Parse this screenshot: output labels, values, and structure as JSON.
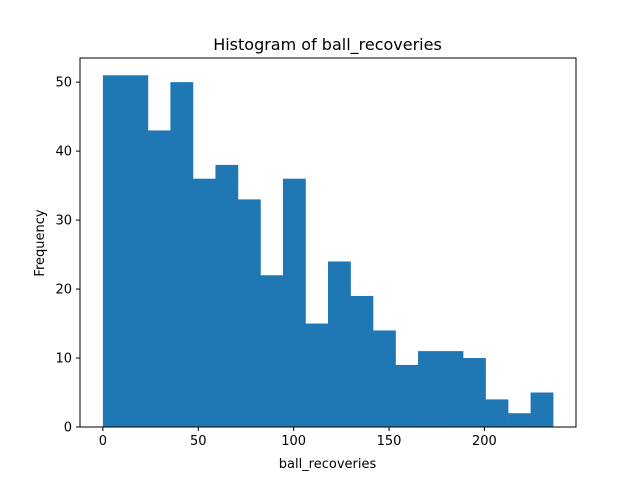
{
  "chart_data": {
    "type": "bar",
    "subtype": "histogram",
    "title": "Histogram of ball_recoveries",
    "xlabel": "ball_recoveries",
    "ylabel": "Frequency",
    "bin_edges": [
      0,
      11.8,
      23.6,
      35.4,
      47.2,
      59.0,
      70.8,
      82.6,
      94.4,
      106.2,
      118.0,
      129.8,
      141.6,
      153.4,
      165.2,
      177.0,
      188.8,
      200.6,
      212.4,
      224.2,
      236.0
    ],
    "values": [
      51,
      51,
      43,
      50,
      36,
      38,
      33,
      22,
      36,
      15,
      24,
      19,
      14,
      9,
      11,
      11,
      10,
      4,
      2,
      5
    ],
    "xlim": [
      -12,
      248
    ],
    "ylim": [
      0,
      53.5
    ],
    "xticks": [
      0,
      50,
      100,
      150,
      200
    ],
    "yticks": [
      0,
      10,
      20,
      30,
      40,
      50
    ],
    "grid": false,
    "color": "#1f77b4"
  }
}
